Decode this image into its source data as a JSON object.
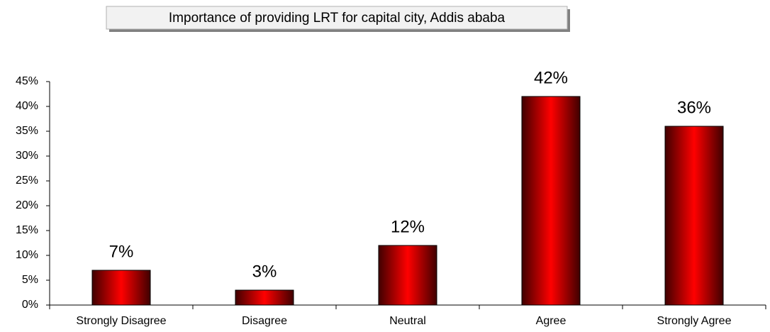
{
  "chart_data": {
    "type": "bar",
    "title": "Importance of providing LRT for capital city, Addis ababa",
    "categories": [
      "Strongly Disagree",
      "Disagree",
      "Neutral",
      "Agree",
      "Strongly Agree"
    ],
    "values": [
      7,
      3,
      12,
      42,
      36
    ],
    "value_labels": [
      "7%",
      "3%",
      "12%",
      "42%",
      "36%"
    ],
    "color": "#ff0000",
    "ylim": [
      0,
      45
    ],
    "yticks": [
      {
        "value": 0,
        "label": "0%"
      },
      {
        "value": 5,
        "label": "5%"
      },
      {
        "value": 10,
        "label": "10%"
      },
      {
        "value": 15,
        "label": "15%"
      },
      {
        "value": 20,
        "label": "20%"
      },
      {
        "value": 25,
        "label": "25%"
      },
      {
        "value": 30,
        "label": "30%"
      },
      {
        "value": 35,
        "label": "35%"
      },
      {
        "value": 40,
        "label": "40%"
      },
      {
        "value": 45,
        "label": "45%"
      }
    ],
    "grid": false
  }
}
